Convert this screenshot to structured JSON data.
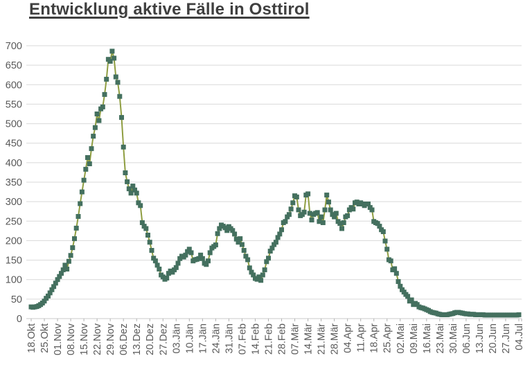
{
  "title": "Entwicklung aktive Fälle in Osttirol",
  "chart_data": {
    "type": "line",
    "title": "Entwicklung aktive Fälle in Osttirol",
    "xlabel": "",
    "ylabel": "",
    "ylim": [
      0,
      700
    ],
    "ytick_step": 50,
    "grid": "horizontal",
    "legend": "none",
    "marker": "square",
    "x_label_rotation": -90,
    "x_tick_labels": [
      "18.Okt",
      "25.Okt",
      "01.Nov",
      "08.Nov",
      "15.Nov",
      "22.Nov",
      "29.Nov",
      "06.Dez",
      "13.Dez",
      "20.Dez",
      "27.Dez",
      "03.Jän",
      "10.Jän",
      "17.Jän",
      "24.Jän",
      "31.Jän",
      "07.Feb",
      "14.Feb",
      "21.Feb",
      "28.Feb",
      "07.Mär",
      "14.Mär",
      "21.Mär",
      "28.Mär",
      "04.Apr",
      "11.Apr",
      "18.Apr",
      "25.Apr",
      "02.Mai",
      "09.Mai",
      "16.Mai",
      "23.Mai",
      "30.Mai",
      "06.Jun",
      "13.Jun",
      "20.Jun",
      "27.Jun",
      "04.Jul"
    ],
    "points_per_x_label": 7,
    "series_name": "aktive Fälle",
    "values": [
      30,
      29,
      30,
      31,
      33,
      36,
      40,
      45,
      52,
      58,
      66,
      74,
      82,
      91,
      100,
      108,
      116,
      125,
      137,
      127,
      147,
      162,
      182,
      205,
      232,
      262,
      295,
      325,
      355,
      383,
      413,
      397,
      436,
      468,
      490,
      525,
      508,
      538,
      543,
      575,
      614,
      665,
      660,
      686,
      668,
      620,
      606,
      570,
      516,
      440,
      374,
      351,
      333,
      322,
      340,
      330,
      322,
      297,
      290,
      246,
      237,
      231,
      214,
      196,
      175,
      155,
      148,
      137,
      127,
      112,
      107,
      101,
      104,
      116,
      122,
      119,
      125,
      131,
      142,
      154,
      160,
      158,
      163,
      172,
      178,
      169,
      148,
      151,
      152,
      154,
      163,
      154,
      142,
      139,
      148,
      169,
      181,
      185,
      189,
      218,
      231,
      240,
      237,
      233,
      226,
      236,
      231,
      226,
      217,
      204,
      196,
      205,
      190,
      175,
      160,
      151,
      130,
      119,
      112,
      103,
      101,
      107,
      98,
      112,
      125,
      146,
      155,
      173,
      181,
      190,
      196,
      208,
      217,
      228,
      246,
      249,
      261,
      267,
      281,
      297,
      315,
      312,
      279,
      264,
      267,
      273,
      317,
      320,
      270,
      253,
      267,
      270,
      272,
      249,
      261,
      246,
      279,
      317,
      299,
      279,
      267,
      261,
      270,
      249,
      244,
      231,
      246,
      261,
      264,
      279,
      285,
      281,
      297,
      299,
      294,
      297,
      294,
      290,
      294,
      294,
      285,
      279,
      249,
      246,
      244,
      237,
      228,
      223,
      199,
      178,
      151,
      148,
      125,
      128,
      116,
      95,
      83,
      74,
      68,
      62,
      57,
      45,
      48,
      36,
      39,
      36,
      30,
      28,
      27,
      25,
      23,
      21,
      18,
      16,
      15,
      14,
      12,
      11,
      10,
      10,
      10,
      10,
      11,
      12,
      13,
      15,
      16,
      16,
      15,
      14,
      13,
      12,
      12,
      11,
      11,
      11,
      10,
      10,
      10,
      10,
      10,
      9,
      9,
      9,
      9,
      9,
      9,
      9,
      9,
      9,
      9,
      9,
      9,
      9,
      9,
      9,
      9,
      9,
      9,
      10
    ],
    "colors": {
      "line": "#8e9d40",
      "marker": "#44705f",
      "grid": "#d9d9d9",
      "axis_line": "#c9c9c9",
      "tick": "#b3b3b3",
      "axis_text": "#595959",
      "title_text": "#3f3f3f"
    }
  }
}
